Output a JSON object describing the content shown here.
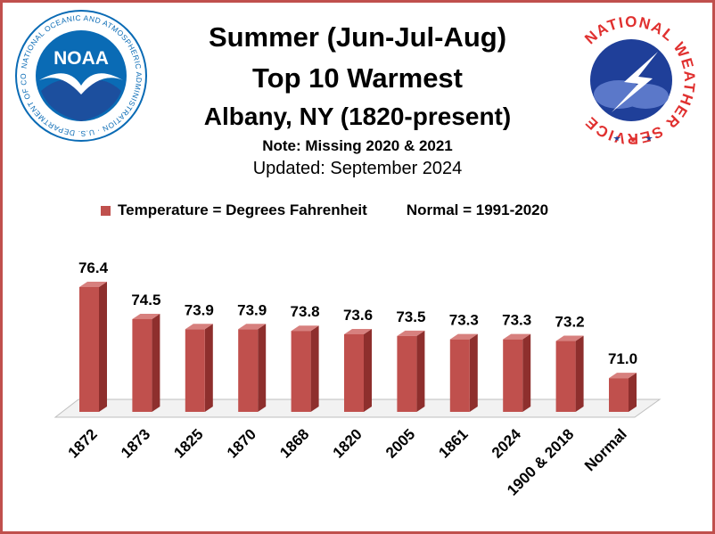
{
  "header": {
    "title_line1": "Summer (Jun-Jul-Aug)",
    "title_line2": "Top 10 Warmest",
    "title_line3": "Albany, NY (1820-present)",
    "note": "Note: Missing 2020 & 2021",
    "updated": "Updated: September 2024"
  },
  "legend": {
    "series_label": "Temperature = Degrees Fahrenheit",
    "normal_label": "Normal = 1991-2020"
  },
  "logos": {
    "left": "NOAA",
    "left_ring": "NATIONAL OCEANIC AND ATMOSPHERIC ADMINISTRATION · U.S. DEPARTMENT OF COMMERCE",
    "right": "NATIONAL WEATHER SERVICE"
  },
  "colors": {
    "bar": "#c0504d",
    "bar_top": "#d7807e",
    "bar_side": "#8e2f2d",
    "frame": "#c0504d",
    "noaa_blue": "#0a6bb5",
    "nws_red": "#e0302f",
    "nws_blue": "#1f3f99"
  },
  "chart_data": {
    "type": "bar",
    "categories": [
      "1872",
      "1873",
      "1825",
      "1870",
      "1868",
      "1820",
      "2005",
      "1861",
      "2024",
      "1900 & 2018",
      "Normal"
    ],
    "values": [
      76.4,
      74.5,
      73.9,
      73.9,
      73.8,
      73.6,
      73.5,
      73.3,
      73.3,
      73.2,
      71.0
    ],
    "value_labels": [
      "76.4",
      "74.5",
      "73.9",
      "73.9",
      "73.8",
      "73.6",
      "73.5",
      "73.3",
      "73.3",
      "73.2",
      "71.0"
    ],
    "ylim": [
      69.0,
      77.0
    ],
    "grid": false,
    "legend_position": "top",
    "style": "3d-column"
  }
}
